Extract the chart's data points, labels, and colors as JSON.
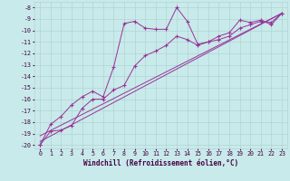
{
  "xlabel": "Windchill (Refroidissement éolien,°C)",
  "background_color": "#c8eaea",
  "grid_color": "#b0d4d4",
  "line_color": "#993399",
  "xmin": -0.5,
  "xmax": 23.5,
  "ymin": -20.3,
  "ymax": -7.5,
  "series": [
    {
      "x": [
        0,
        1,
        2,
        3,
        4,
        5,
        6,
        7,
        8,
        9,
        10,
        11,
        12,
        13,
        14,
        15,
        16,
        17,
        18,
        19,
        20,
        21,
        22,
        23
      ],
      "y": [
        -20.0,
        -18.2,
        -17.5,
        -16.5,
        -15.8,
        -15.3,
        -15.8,
        -13.2,
        -9.4,
        -9.2,
        -9.8,
        -9.9,
        -9.9,
        -8.0,
        -9.2,
        -11.2,
        -11.0,
        -10.5,
        -10.2,
        -9.1,
        -9.3,
        -9.1,
        -9.5,
        -8.5
      ]
    },
    {
      "x": [
        0,
        1,
        2,
        3,
        4,
        5,
        6,
        7,
        8,
        9,
        10,
        11,
        12,
        13,
        14,
        15,
        16,
        17,
        18,
        19,
        20,
        21,
        22,
        23
      ],
      "y": [
        -20.0,
        -18.8,
        -18.7,
        -18.3,
        -16.8,
        -16.0,
        -16.0,
        -15.2,
        -14.8,
        -13.1,
        -12.2,
        -11.8,
        -11.3,
        -10.5,
        -10.8,
        -11.3,
        -11.0,
        -10.8,
        -10.5,
        -9.8,
        -9.5,
        -9.2,
        -9.3,
        -8.5
      ]
    },
    {
      "x": [
        0,
        23
      ],
      "y": [
        -19.7,
        -8.5
      ]
    },
    {
      "x": [
        0,
        23
      ],
      "y": [
        -19.2,
        -8.5
      ]
    }
  ],
  "yticks": [
    -20,
    -19,
    -18,
    -17,
    -16,
    -15,
    -14,
    -13,
    -12,
    -11,
    -10,
    -9,
    -8
  ],
  "xticks": [
    0,
    1,
    2,
    3,
    4,
    5,
    6,
    7,
    8,
    9,
    10,
    11,
    12,
    13,
    14,
    15,
    16,
    17,
    18,
    19,
    20,
    21,
    22,
    23
  ],
  "xlabel_fontsize": 5.5,
  "tick_fontsize": 4.8
}
